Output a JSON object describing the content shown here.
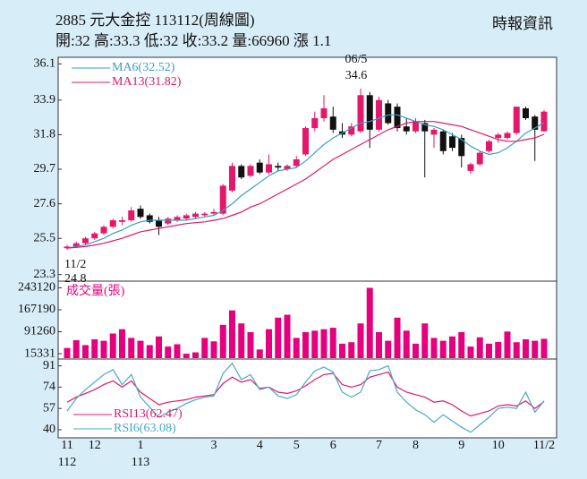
{
  "header": {
    "title": "2885  元大金控 113112(周線圖)",
    "quote": "開:32 高:33.3 低:32 收:33.2 量:66960 漲 1.1",
    "source": "時報資訊"
  },
  "chart_data": [
    {
      "type": "candlestick",
      "up_color": "#e5176b",
      "down_color": "#111111",
      "open": [
        24.9,
        25.0,
        25.2,
        25.5,
        25.8,
        26.2,
        26.5,
        26.6,
        27.3,
        26.9,
        26.6,
        26.4,
        26.6,
        26.7,
        26.8,
        26.9,
        27.0,
        27.0,
        28.4,
        29.9,
        29.3,
        30.1,
        29.5,
        29.9,
        29.7,
        29.9,
        30.6,
        32.2,
        32.8,
        32.9,
        32.0,
        31.8,
        32.0,
        34.2,
        32.1,
        33.7,
        33.5,
        32.3,
        32.0,
        32.5,
        31.8,
        32.0,
        31.7,
        31.6,
        29.6,
        30.0,
        30.8,
        31.6,
        31.6,
        31.9,
        33.4,
        32.9,
        32
      ],
      "high": [
        25.1,
        25.3,
        25.6,
        25.9,
        26.3,
        26.7,
        26.8,
        27.4,
        27.5,
        27.0,
        26.8,
        26.8,
        26.9,
        27.0,
        27.1,
        27.1,
        27.3,
        28.8,
        30.1,
        30.0,
        30.0,
        30.3,
        30.6,
        30.1,
        30.0,
        30.5,
        32.3,
        33.2,
        34.2,
        33.5,
        32.5,
        32.5,
        34.6,
        34.4,
        34.1,
        33.9,
        33.7,
        32.8,
        32.8,
        32.7,
        32.2,
        32.1,
        31.9,
        31.8,
        30.1,
        30.8,
        31.5,
        31.9,
        32.0,
        33.5,
        33.5,
        33.0,
        33.3
      ],
      "low": [
        24.8,
        24.9,
        25.1,
        25.4,
        25.7,
        26.1,
        26.3,
        26.5,
        26.7,
        26.4,
        25.7,
        26.3,
        26.5,
        26.6,
        26.7,
        26.8,
        26.9,
        26.9,
        28.3,
        29.1,
        29.2,
        29.4,
        29.4,
        29.6,
        29.6,
        29.8,
        30.5,
        32.0,
        32.6,
        31.9,
        31.6,
        31.7,
        31.9,
        31.0,
        32.0,
        32.4,
        32.0,
        31.8,
        31.9,
        29.2,
        31.0,
        30.6,
        30.8,
        29.8,
        29.4,
        29.9,
        30.7,
        31.3,
        31.5,
        31.8,
        32.7,
        30.2,
        32
      ],
      "close": [
        25.0,
        25.2,
        25.5,
        25.8,
        26.2,
        26.6,
        26.6,
        27.2,
        26.8,
        26.5,
        26.2,
        26.7,
        26.8,
        26.9,
        27.0,
        27.0,
        27.1,
        28.7,
        29.9,
        29.2,
        29.9,
        29.5,
        30.0,
        29.8,
        29.9,
        30.3,
        32.2,
        32.8,
        33.4,
        32.1,
        31.8,
        32.3,
        34.2,
        32.1,
        33.9,
        32.5,
        32.2,
        32.0,
        32.6,
        32.0,
        32.1,
        30.8,
        31.0,
        30.5,
        30.0,
        30.7,
        31.4,
        31.8,
        31.9,
        33.5,
        32.8,
        32.1,
        33.2
      ],
      "series": [
        {
          "name": "MA6(32.52)",
          "color": "#3a9fc0",
          "values": [
            24.9,
            25.0,
            25.1,
            25.3,
            25.5,
            25.8,
            26.0,
            26.3,
            26.5,
            26.6,
            26.6,
            26.6,
            26.6,
            26.6,
            26.7,
            26.8,
            26.9,
            27.2,
            27.6,
            28.1,
            28.5,
            28.9,
            29.3,
            29.6,
            29.7,
            29.8,
            30.2,
            30.7,
            31.2,
            31.6,
            31.9,
            32.2,
            32.5,
            32.6,
            32.8,
            33.0,
            33.0,
            32.8,
            32.6,
            32.4,
            32.3,
            32.1,
            31.8,
            31.5,
            31.1,
            30.8,
            30.6,
            30.7,
            31.0,
            31.4,
            31.9,
            32.2,
            32.52
          ]
        },
        {
          "name": "MA13(31.82)",
          "color": "#e0176b",
          "values": [
            24.9,
            24.95,
            25.0,
            25.1,
            25.2,
            25.35,
            25.5,
            25.7,
            25.9,
            26.0,
            26.1,
            26.2,
            26.3,
            26.4,
            26.45,
            26.5,
            26.6,
            26.7,
            26.9,
            27.1,
            27.4,
            27.6,
            27.9,
            28.2,
            28.5,
            28.8,
            29.1,
            29.5,
            29.9,
            30.3,
            30.6,
            30.9,
            31.2,
            31.5,
            31.8,
            32.1,
            32.3,
            32.5,
            32.6,
            32.6,
            32.6,
            32.5,
            32.4,
            32.3,
            32.1,
            31.9,
            31.7,
            31.5,
            31.4,
            31.4,
            31.5,
            31.6,
            31.82
          ]
        }
      ],
      "annotations": {
        "high_date": "06/5",
        "high_value": 34.6,
        "low_date": "11/2",
        "low_value": 24.8
      },
      "ylim": [
        22.9,
        36.5
      ],
      "yticks": [
        36.1,
        33.9,
        31.8,
        29.7,
        27.6,
        25.5,
        23.3
      ]
    },
    {
      "type": "bar",
      "title": "成交量(張)",
      "color": "#e5007e",
      "values": [
        35000,
        62000,
        45000,
        65000,
        60000,
        85000,
        100000,
        70000,
        60000,
        45000,
        75000,
        40000,
        48000,
        15331,
        20000,
        70000,
        58000,
        115000,
        165000,
        120000,
        90000,
        30000,
        100000,
        140000,
        150000,
        70000,
        90000,
        95000,
        100000,
        105000,
        50000,
        55000,
        120000,
        243120,
        90000,
        60000,
        140000,
        95000,
        50000,
        120000,
        70000,
        60000,
        75000,
        90000,
        40000,
        72000,
        50000,
        56000,
        92000,
        55000,
        65000,
        60000,
        66960
      ],
      "ylim": [
        0,
        260000
      ],
      "yticks": [
        243120,
        167190,
        91260,
        15331
      ]
    },
    {
      "type": "line",
      "series": [
        {
          "name": "RSI13(62.47)",
          "color": "#e0176b",
          "values": [
            62,
            66,
            69,
            72,
            76,
            79,
            74,
            79,
            70,
            65,
            60,
            62,
            63,
            64,
            66,
            67,
            68,
            77,
            82,
            78,
            80,
            73,
            74,
            70,
            69,
            71,
            75,
            80,
            84,
            85,
            76,
            74,
            76,
            82,
            84,
            86,
            74,
            70,
            68,
            66,
            62,
            63,
            60,
            55,
            51,
            53,
            55,
            59,
            60,
            59,
            63,
            57,
            62.47
          ]
        },
        {
          "name": "RSI6(63.08)",
          "color": "#4aa8c8",
          "values": [
            55,
            65,
            72,
            78,
            84,
            88,
            76,
            84,
            66,
            58,
            50,
            54,
            57,
            61,
            64,
            66,
            67,
            85,
            93,
            80,
            84,
            72,
            74,
            67,
            65,
            68,
            78,
            87,
            90,
            86,
            70,
            66,
            70,
            87,
            88,
            91,
            70,
            62,
            56,
            52,
            46,
            52,
            47,
            42,
            38,
            44,
            50,
            57,
            58,
            57,
            70,
            54,
            63.08
          ]
        }
      ],
      "categories": [
        "11",
        null,
        null,
        "12",
        null,
        null,
        null,
        null,
        "1",
        null,
        null,
        null,
        null,
        null,
        null,
        null,
        "3",
        null,
        null,
        null,
        null,
        "4",
        null,
        null,
        null,
        "5",
        null,
        null,
        null,
        "6",
        null,
        null,
        null,
        null,
        "7",
        null,
        null,
        null,
        "8",
        null,
        null,
        null,
        null,
        "9",
        null,
        null,
        null,
        "10",
        null,
        null,
        null,
        null,
        "11/2"
      ],
      "categories_year": [
        "112",
        null,
        null,
        null,
        null,
        null,
        null,
        null,
        "113",
        null,
        null,
        null,
        null,
        null,
        null,
        null,
        null,
        null,
        null,
        null,
        null,
        null,
        null,
        null,
        null,
        null,
        null,
        null,
        null,
        null,
        null,
        null,
        null,
        null,
        null,
        null,
        null,
        null,
        null,
        null,
        null,
        null,
        null,
        null,
        null,
        null,
        null,
        null,
        null,
        null,
        null,
        null,
        null
      ],
      "ylim": [
        35,
        95
      ],
      "yticks": [
        91,
        74,
        57,
        40
      ]
    }
  ]
}
